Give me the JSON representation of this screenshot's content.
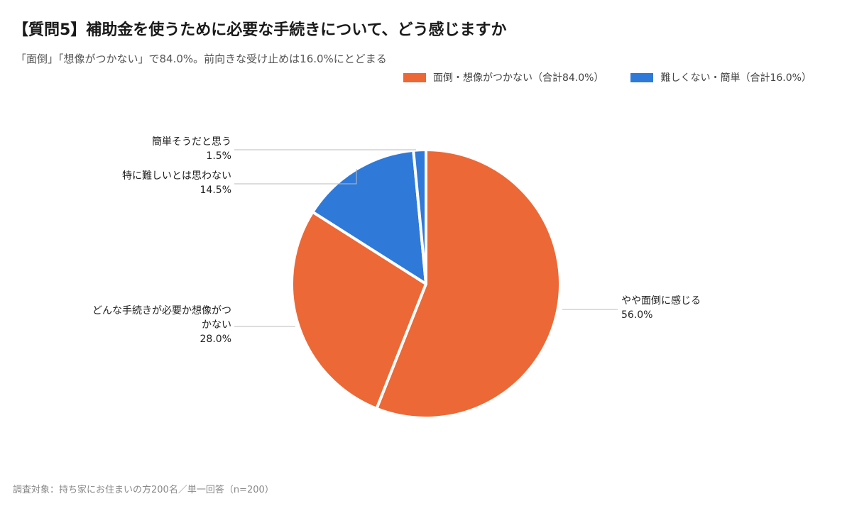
{
  "title": "【質問5】補助金を使うために必要な手続きについて、どう感じますか",
  "subtitle": "「面倒」「想像がつかない」で84.0%。前向きな受け止めは16.0%にとどまる",
  "footer": "調査対象：持ち家にお住まいの方200名／単一回答（n=200）",
  "colors": {
    "orange": "#ec6836",
    "blue": "#2f79d8",
    "leader": "#bbbbbb"
  },
  "legend": [
    {
      "label": "面倒・想像がつかない（合計84.0%）",
      "color": "#ec6836"
    },
    {
      "label": "難しくない・簡単（合計16.0%）",
      "color": "#2f79d8"
    }
  ],
  "chart_data": {
    "type": "pie",
    "title": "【質問5】補助金を使うために必要な手続きについて、どう感じますか",
    "slices": [
      {
        "label": "やや面倒に感じる",
        "value": 56.0,
        "value_label": "56.0%",
        "color": "#ec6836",
        "label_side": "right"
      },
      {
        "label": "どんな手続きが必要か想像がつかない",
        "label_lines": [
          "どんな手続きが必要か想像がつ",
          "かない"
        ],
        "value": 28.0,
        "value_label": "28.0%",
        "color": "#ec6836",
        "label_side": "left"
      },
      {
        "label": "特に難しいとは思わない",
        "value": 14.5,
        "value_label": "14.5%",
        "color": "#2f79d8",
        "label_side": "left"
      },
      {
        "label": "簡単そうだと思う",
        "value": 1.5,
        "value_label": "1.5%",
        "color": "#2f79d8",
        "label_side": "left"
      }
    ],
    "start_angle": "12 o'clock",
    "direction": "clockwise",
    "legend_position": "top-right"
  }
}
